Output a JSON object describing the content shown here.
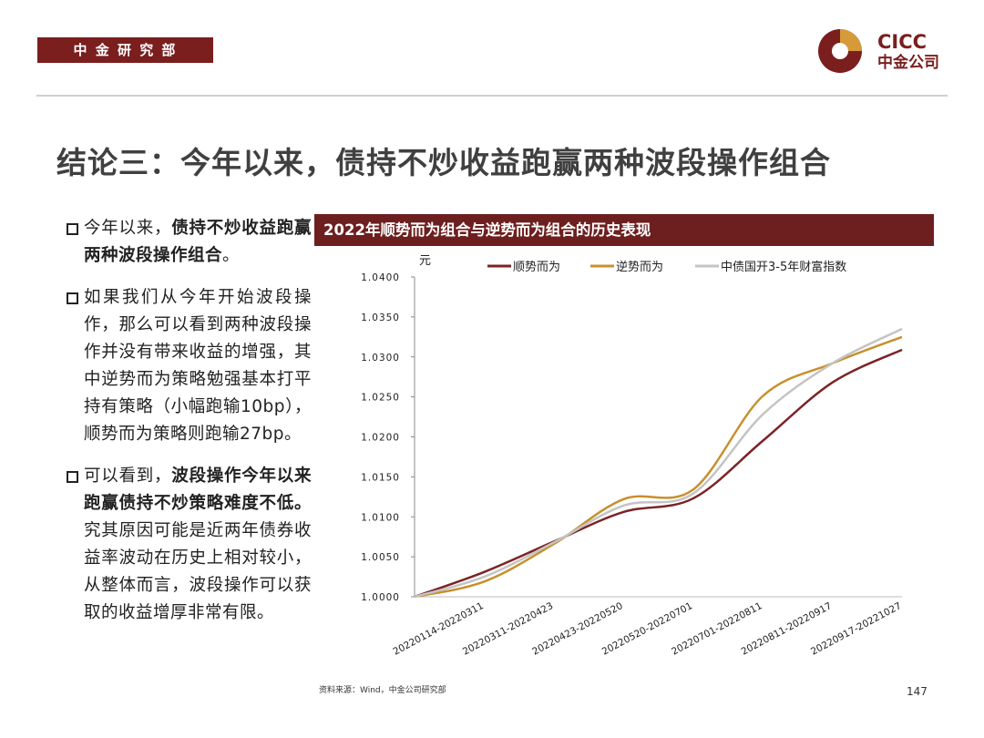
{
  "header": {
    "department": "中 金 研 究 部",
    "logo_en": "CICC",
    "logo_cn": "中金公司"
  },
  "title": "结论三：今年以来，债持不炒收益跑赢两种波段操作组合",
  "bullets": [
    {
      "runs": [
        {
          "text": "今年以来，",
          "bold": false
        },
        {
          "text": "债持不炒收益跑赢两种波段操作组合",
          "bold": true
        },
        {
          "text": "。",
          "bold": false
        }
      ]
    },
    {
      "runs": [
        {
          "text": "如果我们从今年开始波段操作，那么可以看到两种波段操作并没有带来收益的增强，其中逆势而为策略勉强基本打平持有策略（小幅跑输10bp），顺势而为策略则跑输27bp。",
          "bold": false
        }
      ]
    },
    {
      "runs": [
        {
          "text": "可以看到，",
          "bold": false
        },
        {
          "text": "波段操作今年以来跑赢债持不炒策略难度不低。",
          "bold": true
        },
        {
          "text": "究其原因可能是近两年债券收益率波动在历史上相对较小，从整体而言，波段操作可以获取的收益增厚非常有限。",
          "bold": false
        }
      ]
    }
  ],
  "chart_data": {
    "type": "line",
    "title": "2022年顺势而为组合与逆势而为组合的历史表现",
    "y_label": "元",
    "categories": [
      null,
      "20220114-20220311",
      "20220311-20220423",
      "20220423-20220520",
      "20220520-20220701",
      "20220701-20220811",
      "20220811-20220917",
      "20220917-20221027"
    ],
    "series": [
      {
        "name": "顺势而为",
        "color": "#7b2326",
        "values": [
          1.0,
          1.0031,
          1.0069,
          1.0106,
          1.0123,
          1.0195,
          1.0268,
          1.0309
        ]
      },
      {
        "name": "逆势而为",
        "color": "#c8902e",
        "values": [
          1.0,
          1.0019,
          1.0066,
          1.0122,
          1.0134,
          1.0251,
          1.0292,
          1.0325
        ]
      },
      {
        "name": "中债国开3-5年财富指数",
        "color": "#c4c4c4",
        "values": [
          1.0,
          1.0025,
          1.0068,
          1.0114,
          1.0129,
          1.0228,
          1.0292,
          1.0335
        ]
      }
    ],
    "ylim": [
      1.0,
      1.04
    ],
    "yticks": [
      {
        "value": 1.0,
        "label": "1.0000"
      },
      {
        "value": 1.005,
        "label": "1.0050"
      },
      {
        "value": 1.01,
        "label": "1.0100"
      },
      {
        "value": 1.015,
        "label": "1.0150"
      },
      {
        "value": 1.02,
        "label": "1.0200"
      },
      {
        "value": 1.025,
        "label": "1.0250"
      },
      {
        "value": 1.03,
        "label": "1.0300"
      },
      {
        "value": 1.035,
        "label": "1.0350"
      },
      {
        "value": 1.04,
        "label": "1.0400"
      }
    ],
    "legend": "top"
  },
  "source": "资料来源：Wind，中金公司研究部",
  "page_number": "147"
}
